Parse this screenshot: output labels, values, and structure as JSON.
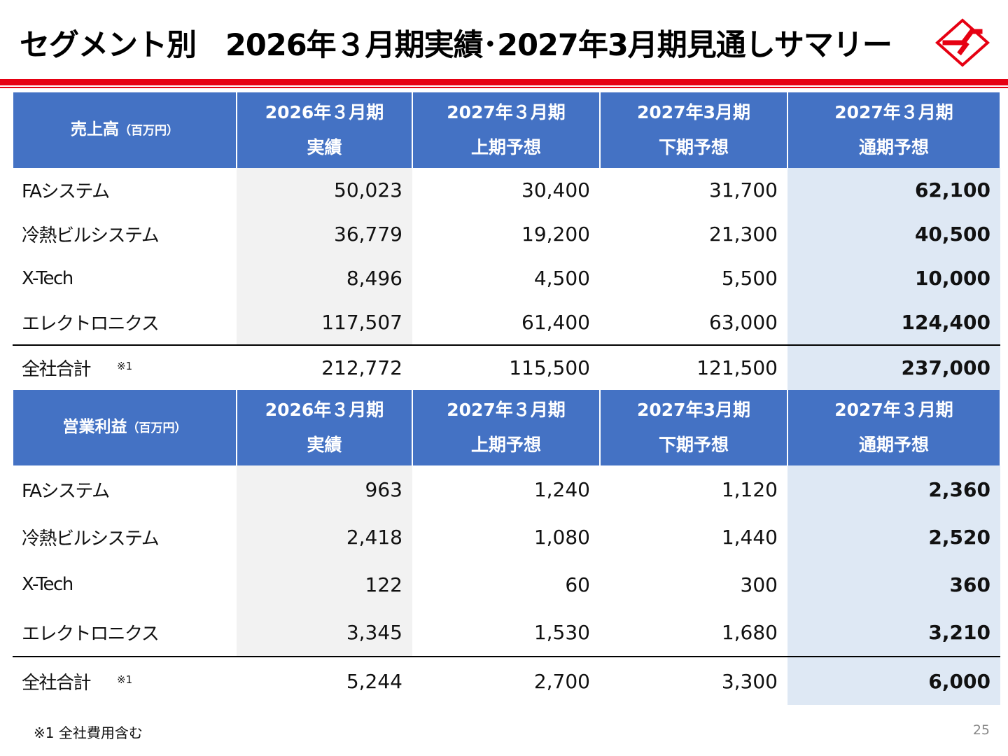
{
  "title": "セグメント別　2026年３月期実績･2027年3月期見通しサマリー",
  "sales_table": {
    "header": {
      "label": "売上高",
      "unit": "（百万円）",
      "columns": [
        {
          "line1": "2026年３月期",
          "line2": "実績"
        },
        {
          "line1": "2027年３月期",
          "line2": "上期予想"
        },
        {
          "line1": "2027年3月期",
          "line2": "下期予想"
        },
        {
          "line1": "2027年３月期",
          "line2": "通期予想"
        }
      ]
    },
    "rows": [
      {
        "name": "FAシステム",
        "values": [
          "50,023",
          "30,400",
          "31,700",
          "62,100"
        ]
      },
      {
        "name": "冷熱ビルシステム",
        "values": [
          "36,779",
          "19,200",
          "21,300",
          "40,500"
        ]
      },
      {
        "name": "X-Tech",
        "values": [
          "8,496",
          "4,500",
          "5,500",
          "10,000"
        ]
      },
      {
        "name": "エレクトロニクス",
        "values": [
          "117,507",
          "61,400",
          "63,000",
          "124,400"
        ]
      }
    ],
    "total": {
      "name": "全社合計",
      "note": "※1",
      "values": [
        "212,772",
        "115,500",
        "121,500",
        "237,000"
      ]
    }
  },
  "op_table": {
    "header": {
      "label": "営業利益",
      "unit": "（百万円）",
      "columns": [
        {
          "line1": "2026年３月期",
          "line2": "実績"
        },
        {
          "line1": "2027年３月期",
          "line2": "上期予想"
        },
        {
          "line1": "2027年3月期",
          "line2": "下期予想"
        },
        {
          "line1": "2027年３月期",
          "line2": "通期予想"
        }
      ]
    },
    "rows": [
      {
        "name": "FAシステム",
        "values": [
          "963",
          "1,240",
          "1,120",
          "2,360"
        ]
      },
      {
        "name": "冷熱ビルシステム",
        "values": [
          "2,418",
          "1,080",
          "1,440",
          "2,520"
        ]
      },
      {
        "name": "X-Tech",
        "values": [
          "122",
          "60",
          "300",
          "360"
        ]
      },
      {
        "name": "エレクトロニクス",
        "values": [
          "3,345",
          "1,530",
          "1,680",
          "3,210"
        ]
      }
    ],
    "total": {
      "name": "全社合計",
      "note": "※1",
      "values": [
        "5,244",
        "2,700",
        "3,300",
        "6,000"
      ]
    }
  },
  "footnote": "※1 全社費用含む",
  "page_number": "25",
  "colors": {
    "accent_red": "#e60012",
    "header_blue": "#4472c4",
    "forecast_bg": "#dee8f4",
    "actual_bg": "#f2f2f2"
  }
}
